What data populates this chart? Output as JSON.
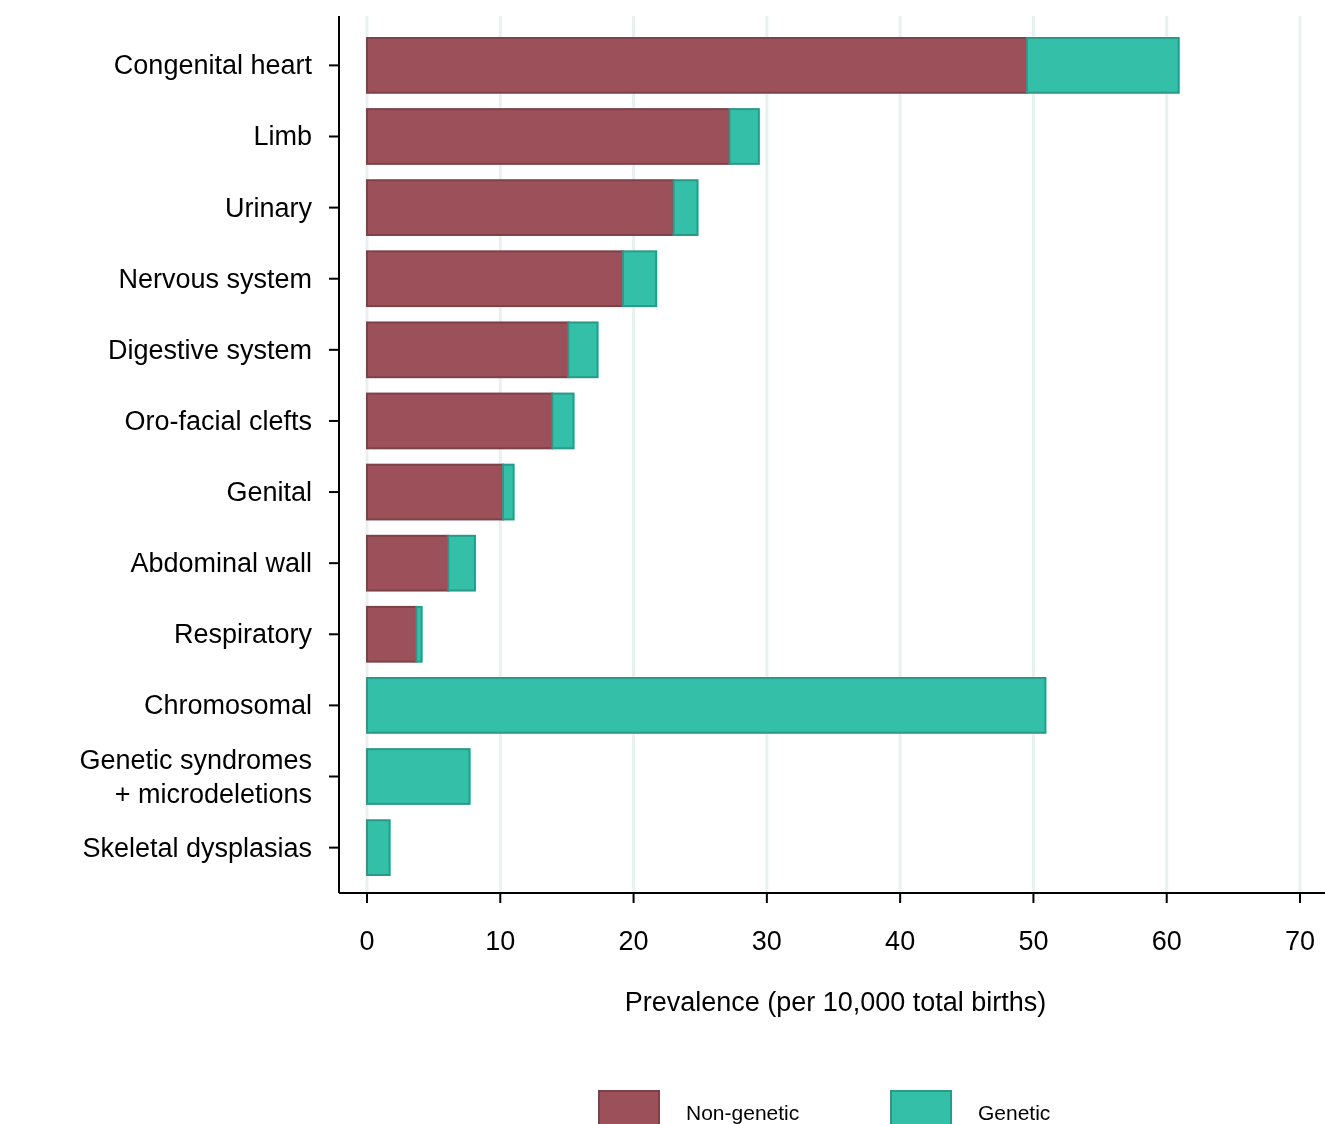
{
  "chart_data": {
    "type": "bar",
    "orientation": "horizontal",
    "stacked": true,
    "xlabel": "Prevalence (per 10,000 total births)",
    "categories": [
      "Congenital heart",
      "Limb",
      "Urinary",
      "Nervous system",
      "Digestive system",
      "Oro-facial clefts",
      "Genital",
      "Abdominal wall",
      "Respiratory",
      "Chromosomal",
      "Genetic syndromes\n+ microdeletions",
      "Skeletal dysplasias"
    ],
    "series": [
      {
        "name": "Non-genetic",
        "color": "#9b505a",
        "values": [
          49.5,
          27.2,
          23.0,
          19.2,
          15.1,
          13.9,
          10.2,
          6.1,
          3.7,
          0,
          0,
          0
        ]
      },
      {
        "name": "Genetic",
        "color": "#33bfa8",
        "values": [
          11.4,
          2.2,
          1.8,
          2.5,
          2.2,
          1.6,
          0.8,
          2.0,
          0.4,
          50.9,
          7.7,
          1.7
        ]
      }
    ],
    "xlim": [
      -2.1,
      72.1
    ],
    "xticks": [
      0,
      10,
      20,
      30,
      40,
      50,
      60,
      70
    ],
    "grid": "x",
    "legend": "bottom"
  }
}
